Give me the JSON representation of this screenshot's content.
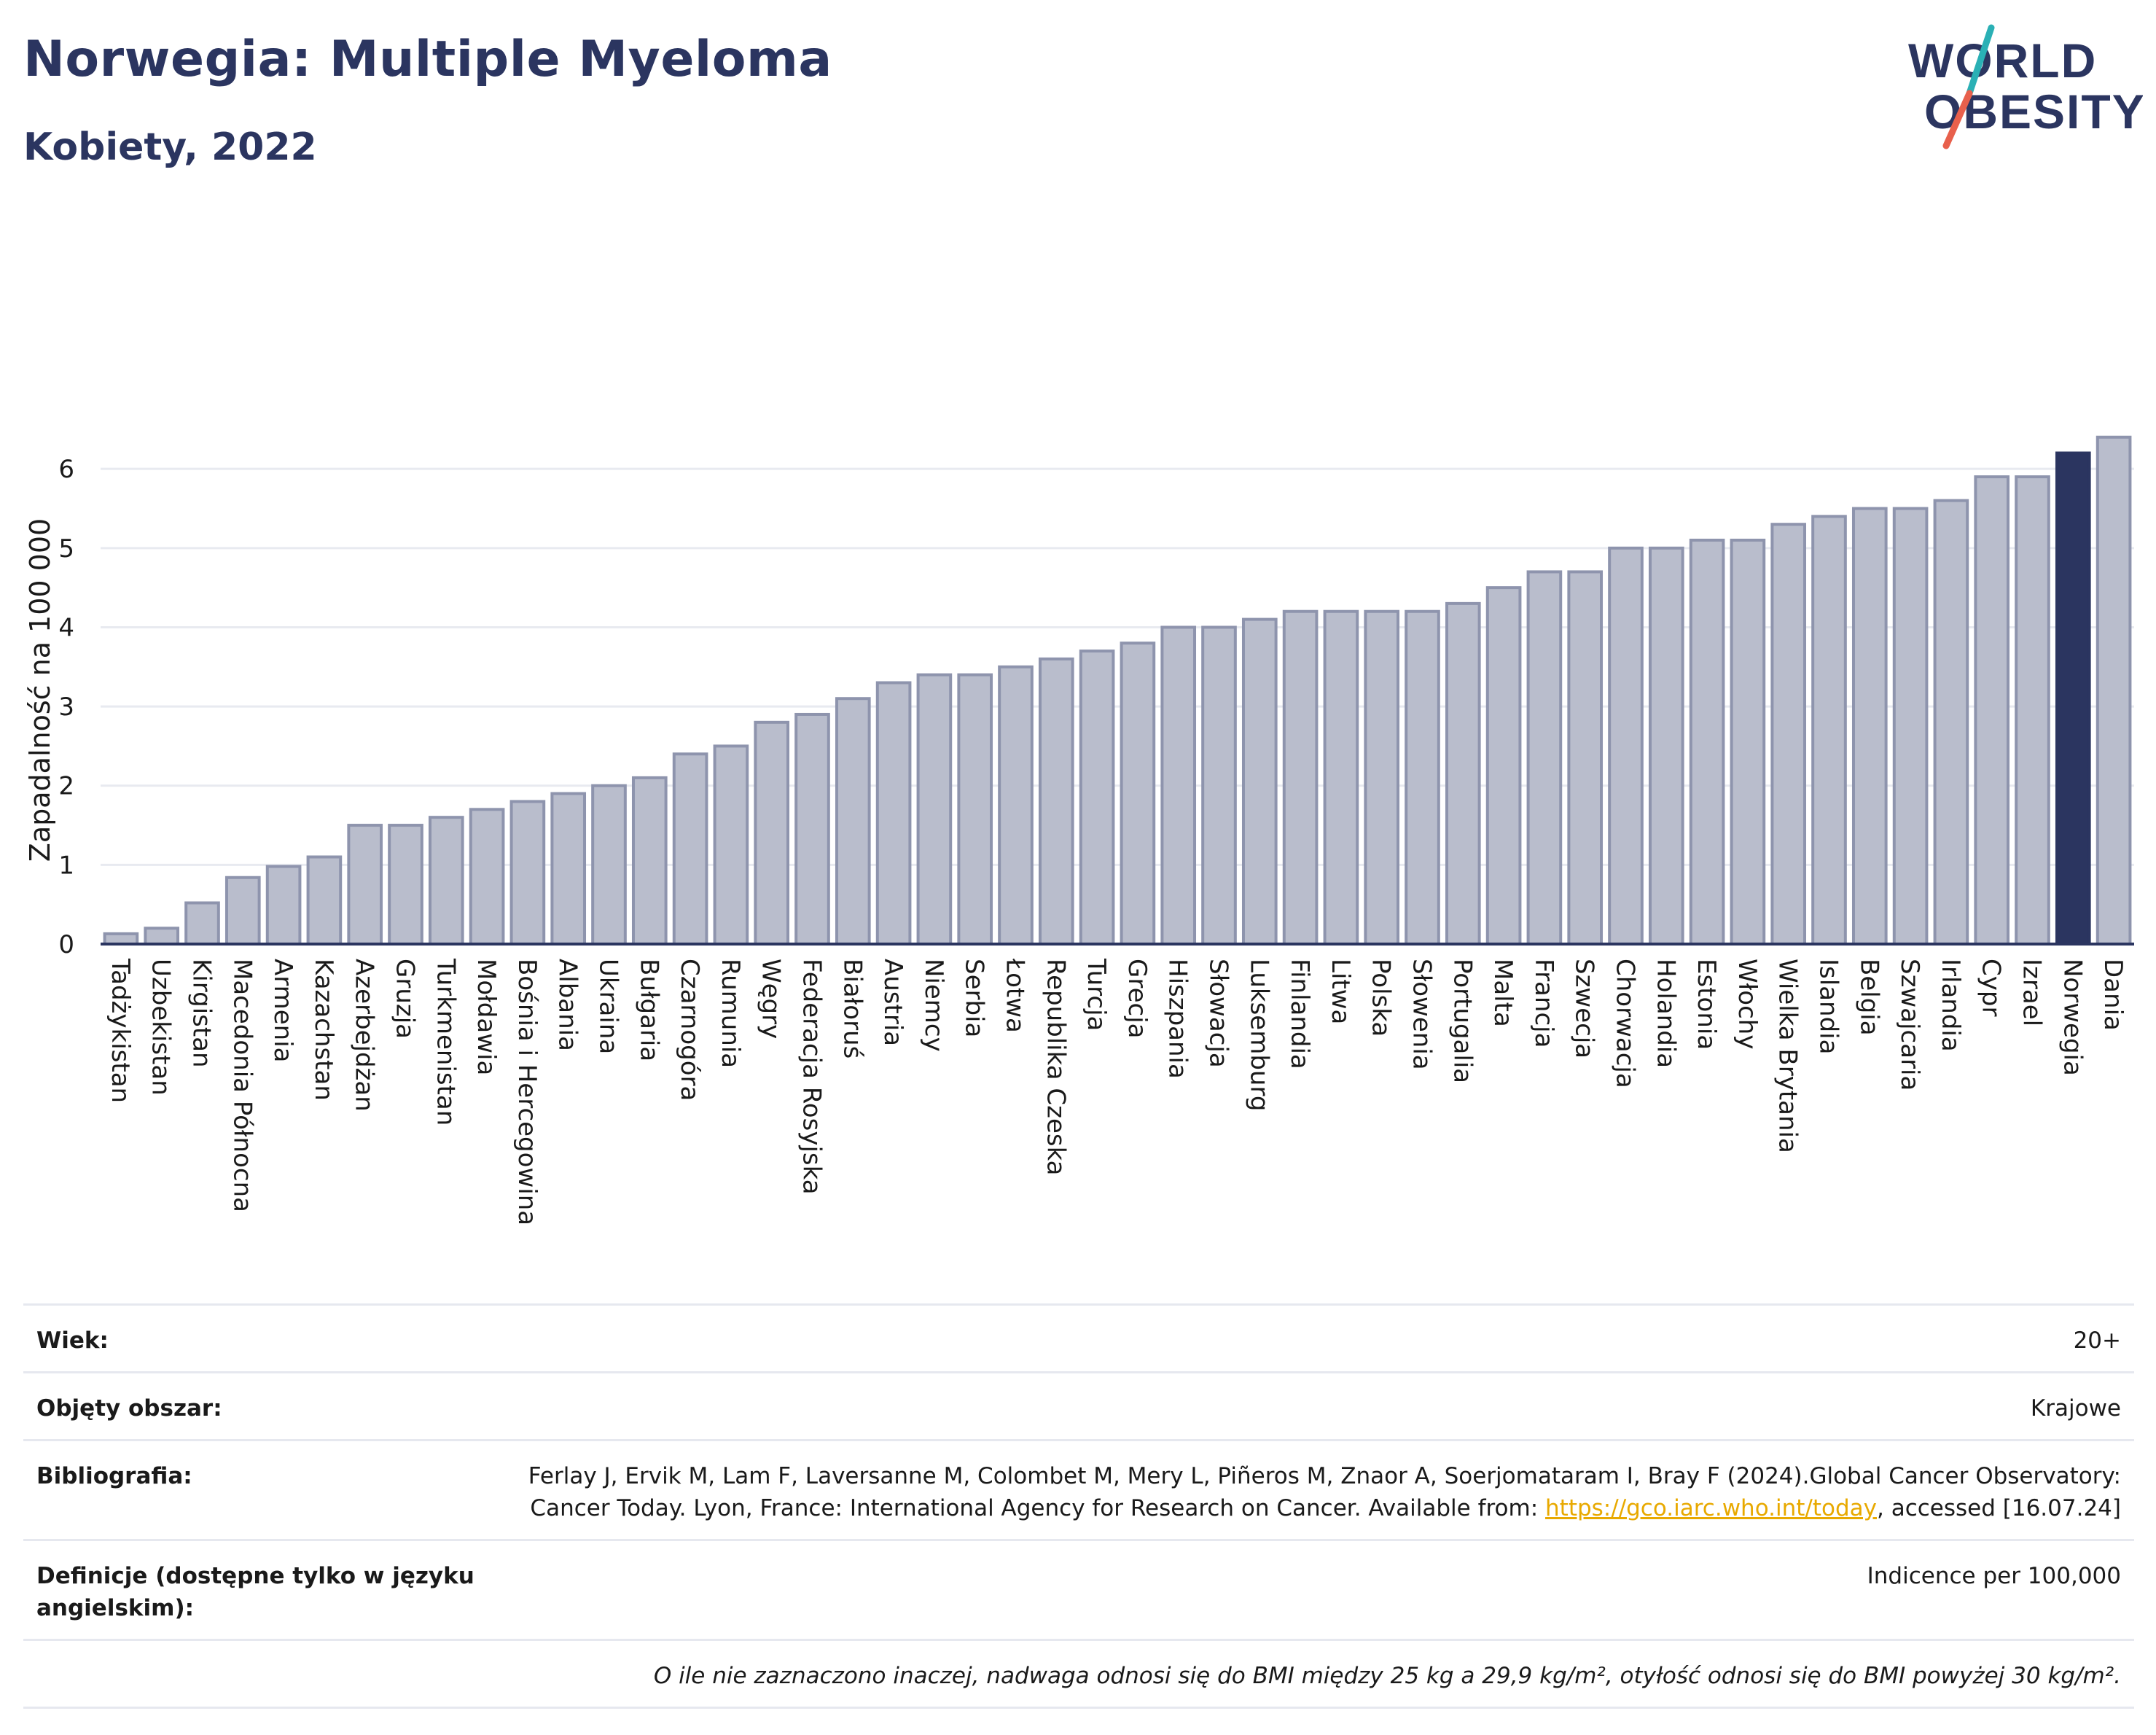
{
  "header": {
    "title": "Norwegia: Multiple Myeloma",
    "subtitle": "Kobiety, 2022"
  },
  "logo": {
    "line1": "WORLD",
    "line2": "OBESITY"
  },
  "colors": {
    "bar": "#b9bdcc",
    "bar_stroke": "#8e94ad",
    "highlight": "#2b3560",
    "grid": "#e8eaf0",
    "axis_text": "#1a1a1a",
    "logo_teal": "#2ab0b5",
    "logo_red": "#e8604c"
  },
  "chart_data": {
    "type": "bar",
    "ylabel": "Zapadalność na 100 000",
    "ylim": [
      0,
      6.6
    ],
    "yticks": [
      0,
      1,
      2,
      3,
      4,
      5,
      6
    ],
    "grid": true,
    "highlight": "Norwegia",
    "categories": [
      "Tadżykistan",
      "Uzbekistan",
      "Kirgistan",
      "Macedonia Północna",
      "Armenia",
      "Kazachstan",
      "Azerbejdżan",
      "Gruzja",
      "Turkmenistan",
      "Mołdawia",
      "Bośnia i Hercegowina",
      "Albania",
      "Ukraina",
      "Bułgaria",
      "Czarnogóra",
      "Rumunia",
      "Węgry",
      "Federacja Rosyjska",
      "Białoruś",
      "Austria",
      "Niemcy",
      "Serbia",
      "Łotwa",
      "Republika Czeska",
      "Turcja",
      "Grecja",
      "Hiszpania",
      "Słowacja",
      "Luksemburg",
      "Finlandia",
      "Litwa",
      "Polska",
      "Słowenia",
      "Portugalia",
      "Malta",
      "Francja",
      "Szwecja",
      "Chorwacja",
      "Holandia",
      "Estonia",
      "Włochy",
      "Wielka Brytania",
      "Islandia",
      "Belgia",
      "Szwajcaria",
      "Irlandia",
      "Cypr",
      "Izrael",
      "Norwegia",
      "Dania"
    ],
    "values": [
      0.13,
      0.2,
      0.52,
      0.84,
      0.98,
      1.1,
      1.5,
      1.5,
      1.6,
      1.7,
      1.8,
      1.9,
      2.0,
      2.1,
      2.4,
      2.5,
      2.8,
      2.9,
      3.1,
      3.3,
      3.4,
      3.4,
      3.5,
      3.6,
      3.7,
      3.8,
      4.0,
      4.0,
      4.1,
      4.2,
      4.2,
      4.2,
      4.2,
      4.3,
      4.5,
      4.7,
      4.7,
      5.0,
      5.0,
      5.1,
      5.1,
      5.3,
      5.4,
      5.5,
      5.5,
      5.6,
      5.9,
      5.9,
      6.2,
      6.4
    ]
  },
  "meta": {
    "age_label": "Wiek:",
    "age_value": "20+",
    "area_label": "Objęty obszar:",
    "area_value": "Krajowe",
    "bib_label": "Bibliografia:",
    "bib_text": "Ferlay J, Ervik M, Lam F, Laversanne M, Colombet M, Mery L, Piñeros M, Znaor A, Soerjomataram I, Bray F (2024).Global Cancer Observatory: Cancer Today. Lyon, France: International Agency for Research on Cancer. Available from: ",
    "bib_link": "https://gco.iarc.who.int/today",
    "bib_tail": ", accessed [16.07.24]",
    "def_label": "Definicje (dostępne tylko w języku angielskim):",
    "def_value": "Indicence per 100,000",
    "note": "O ile nie zaznaczono inaczej, nadwaga odnosi się do BMI między 25 kg a 29,9 kg/m², otyłość odnosi się do BMI powyżej 30 kg/m²."
  }
}
